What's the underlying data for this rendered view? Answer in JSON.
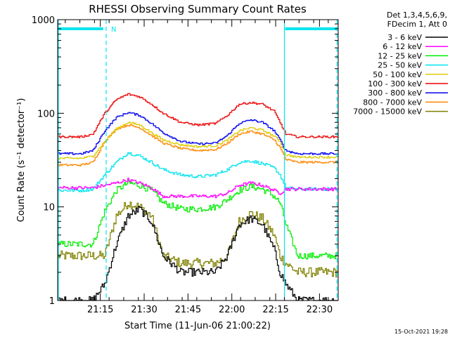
{
  "chart_data": {
    "type": "line",
    "title": "RHESSI Observing Summary Count Rates",
    "xlabel": "Start Time (11-Jun-06 21:00:22)",
    "ylabel": "Count Rate (s⁻¹ detector⁻¹)",
    "yscale": "log",
    "ylim": [
      1,
      1000
    ],
    "xlim": [
      0,
      96
    ],
    "x_unit": "minutes after 21:00:22",
    "x_ticks": [
      {
        "pos": 14.6,
        "label": "21:15"
      },
      {
        "pos": 29.6,
        "label": "21:30"
      },
      {
        "pos": 44.6,
        "label": "21:45"
      },
      {
        "pos": 59.6,
        "label": "22:00"
      },
      {
        "pos": 74.6,
        "label": "22:15"
      },
      {
        "pos": 89.6,
        "label": "22:30"
      }
    ],
    "y_ticks": [
      {
        "value": 1,
        "label": "1"
      },
      {
        "value": 10,
        "label": "10"
      },
      {
        "value": 100,
        "label": "100"
      },
      {
        "value": 1000,
        "label": "1000"
      }
    ],
    "legend_header": [
      "Det 1,3,4,5,6,9,",
      "FDecim 1, Att 0"
    ],
    "night_marker": "N",
    "shading": {
      "solid_lines": [
        0,
        77.6
      ],
      "dashed_lines": [
        16.6,
        95.6
      ],
      "flag_bars": [
        [
          0,
          15.6
        ],
        [
          77.6,
          95.6
        ]
      ]
    },
    "time_points": [
      0,
      8,
      12,
      16,
      20,
      24,
      28,
      32,
      36,
      42,
      48,
      54,
      58,
      62,
      66,
      70,
      74,
      76,
      78,
      82,
      90,
      96
    ],
    "series": [
      {
        "name": "3 - 6 keV",
        "color": "#000000",
        "noise": 0.1,
        "values": [
          1,
          1,
          1,
          1.5,
          4,
          8,
          9.5,
          7,
          3,
          2,
          2,
          2,
          3,
          6.5,
          7.5,
          6.5,
          3.5,
          2,
          1.5,
          1,
          1,
          1
        ]
      },
      {
        "name": "6 - 12 keV",
        "color": "#ff00ff",
        "noise": 0.04,
        "values": [
          16,
          16,
          16,
          17,
          18,
          19.5,
          18,
          16,
          13,
          13,
          13,
          13,
          14,
          17,
          18,
          17,
          15,
          14,
          15.5,
          15.5,
          15.5,
          15.5
        ]
      },
      {
        "name": "12 - 25 keV",
        "color": "#00ee00",
        "noise": 0.08,
        "values": [
          4,
          4,
          4,
          9,
          15,
          18,
          17,
          15,
          11,
          9.5,
          9.5,
          10,
          12,
          15,
          16.5,
          15.5,
          13,
          11,
          6.5,
          3,
          3,
          3
        ]
      },
      {
        "name": "25 - 50 keV",
        "color": "#00e5ee",
        "noise": 0.04,
        "values": [
          15,
          15,
          15.5,
          22,
          30,
          38,
          35,
          30,
          25,
          22,
          21,
          22,
          25,
          30,
          31,
          29,
          26,
          22,
          16,
          15.5,
          15.5,
          15.5
        ]
      },
      {
        "name": "50 - 100 keV",
        "color": "#ddcc00",
        "noise": 0.025,
        "values": [
          33,
          33,
          35,
          50,
          68,
          80,
          75,
          62,
          52,
          46,
          44,
          45,
          52,
          65,
          70,
          66,
          57,
          50,
          36,
          34,
          34,
          34
        ]
      },
      {
        "name": "100 - 300 keV",
        "color": "#ee0000",
        "noise": 0.025,
        "values": [
          56,
          56,
          60,
          100,
          140,
          160,
          150,
          125,
          100,
          80,
          75,
          78,
          95,
          125,
          130,
          125,
          105,
          80,
          60,
          56,
          56,
          56
        ]
      },
      {
        "name": "300 - 800 keV",
        "color": "#0000ee",
        "noise": 0.025,
        "values": [
          37,
          37,
          40,
          65,
          90,
          102,
          95,
          78,
          62,
          50,
          47,
          48,
          58,
          78,
          85,
          80,
          65,
          52,
          40,
          37,
          37,
          37
        ]
      },
      {
        "name": "800 - 7000 keV",
        "color": "#ff8800",
        "noise": 0.025,
        "values": [
          28,
          28,
          30,
          50,
          68,
          75,
          70,
          58,
          48,
          42,
          40,
          41,
          48,
          60,
          64,
          60,
          52,
          43,
          32,
          30,
          30,
          30
        ]
      },
      {
        "name": "7000 - 15000 keV",
        "color": "#808000",
        "noise": 0.12,
        "values": [
          3,
          3,
          3,
          3,
          8,
          11,
          10,
          8,
          3,
          2.5,
          2.5,
          2.5,
          3,
          7,
          8.5,
          7.5,
          5,
          3,
          2.5,
          2,
          2,
          2
        ]
      }
    ]
  },
  "footer": {
    "timestamp": "15-Oct-2021 19:28"
  }
}
